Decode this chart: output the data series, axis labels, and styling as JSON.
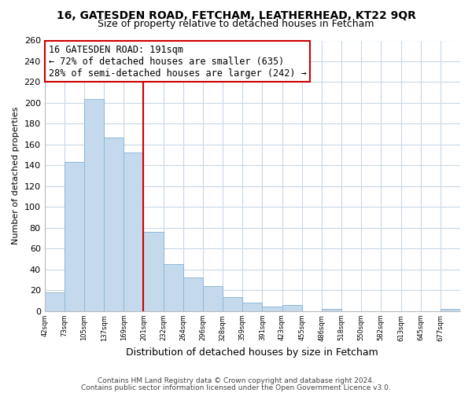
{
  "title": "16, GATESDEN ROAD, FETCHAM, LEATHERHEAD, KT22 9QR",
  "subtitle": "Size of property relative to detached houses in Fetcham",
  "xlabel": "Distribution of detached houses by size in Fetcham",
  "ylabel": "Number of detached properties",
  "bar_color": "#c5d9ed",
  "bar_edge_color": "#8fb8d8",
  "vline_color": "#cc0000",
  "vline_x_index": 5,
  "annotation_title": "16 GATESDEN ROAD: 191sqm",
  "annotation_line1": "← 72% of detached houses are smaller (635)",
  "annotation_line2": "28% of semi-detached houses are larger (242) →",
  "bin_labels": [
    "42sqm",
    "73sqm",
    "105sqm",
    "137sqm",
    "169sqm",
    "201sqm",
    "232sqm",
    "264sqm",
    "296sqm",
    "328sqm",
    "359sqm",
    "391sqm",
    "423sqm",
    "455sqm",
    "486sqm",
    "518sqm",
    "550sqm",
    "582sqm",
    "613sqm",
    "645sqm",
    "677sqm"
  ],
  "bar_heights": [
    18,
    143,
    204,
    167,
    152,
    76,
    45,
    32,
    24,
    13,
    8,
    4,
    6,
    0,
    2,
    0,
    0,
    0,
    0,
    0,
    2
  ],
  "ylim": [
    0,
    260
  ],
  "yticks": [
    0,
    20,
    40,
    60,
    80,
    100,
    120,
    140,
    160,
    180,
    200,
    220,
    240,
    260
  ],
  "footnote1": "Contains HM Land Registry data © Crown copyright and database right 2024.",
  "footnote2": "Contains public sector information licensed under the Open Government Licence v3.0."
}
